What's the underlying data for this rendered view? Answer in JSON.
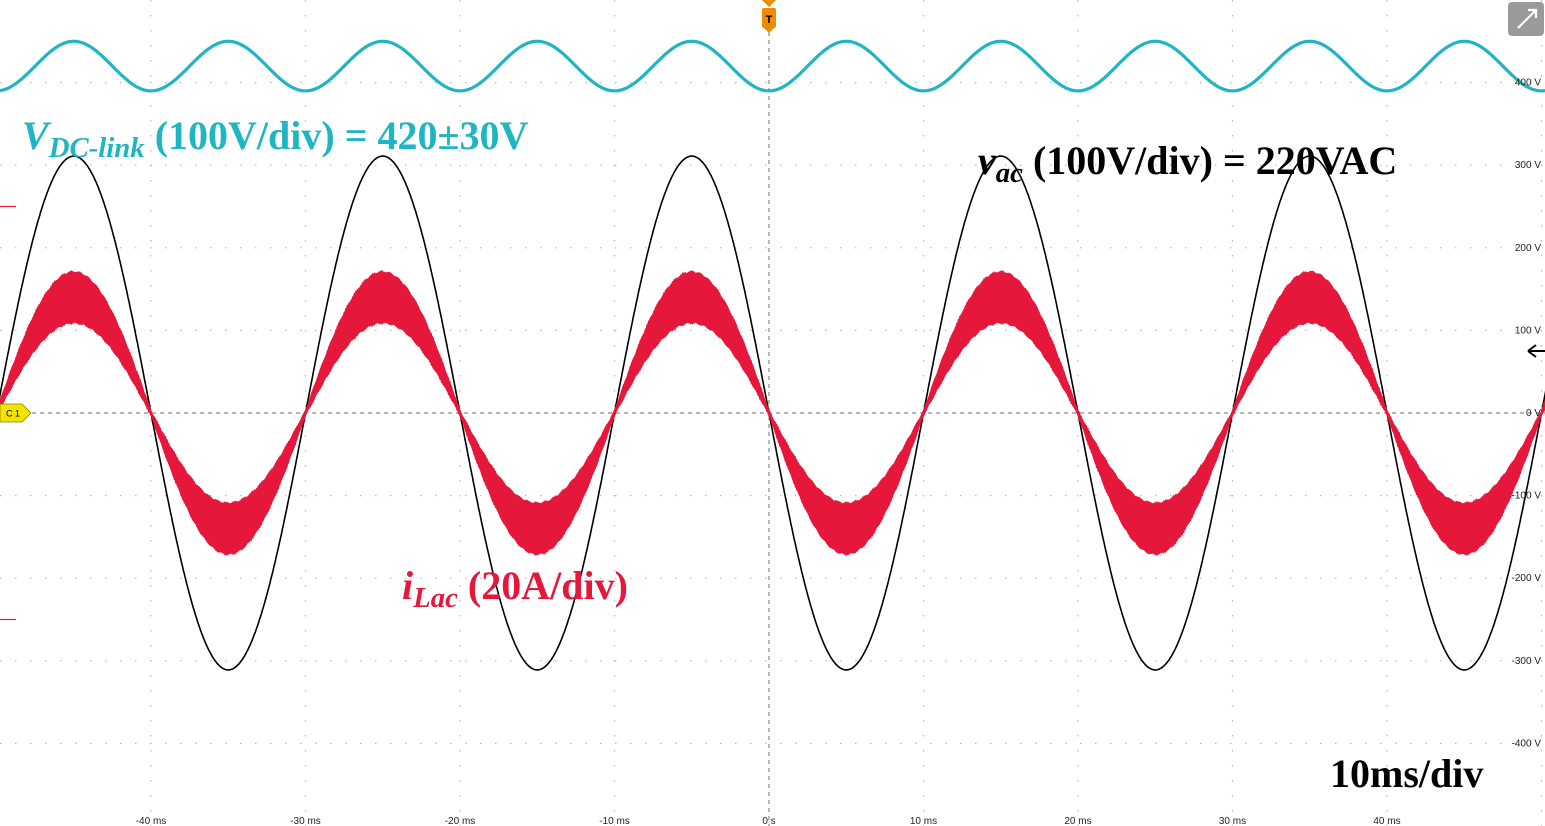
{
  "chart_data": {
    "type": "line",
    "time_axis": {
      "unit": "ms",
      "range": [
        -50,
        50
      ],
      "tick_values": [
        -40,
        -30,
        -20,
        -10,
        0,
        10,
        20,
        30,
        40
      ],
      "tick_labels": [
        "-40 ms",
        "-30 ms",
        "-20 ms",
        "-10 ms",
        "0 s",
        "10 ms",
        "20 ms",
        "30 ms",
        "40 ms"
      ]
    },
    "voltage_axis": {
      "unit": "V",
      "range": [
        -400,
        400
      ],
      "tick_values": [
        400,
        300,
        200,
        100,
        0,
        -100,
        -200,
        -300,
        -400
      ],
      "tick_labels": [
        "400 V",
        "300 V",
        "200 V",
        "100 V",
        "0 V",
        "-100 V",
        "-200 V",
        "-300 V",
        "-400 V"
      ]
    },
    "grid": true,
    "series": [
      {
        "key": "vdc",
        "color": "#1fb5c2",
        "dc_offset_V": 420,
        "ripple_amplitude_V": 30,
        "frequency_Hz": 100,
        "waveform": "sine"
      },
      {
        "key": "vac",
        "color": "#000000",
        "amplitude_V": 311,
        "frequency_Hz": 50,
        "waveform": "sine"
      },
      {
        "key": "ilac",
        "color": "#e5173a",
        "amplitude_divisions": 1.4,
        "ripple_band_divisions": 0.56,
        "frequency_Hz": 50,
        "waveform": "sine with switching ripple band"
      }
    ],
    "markers": {
      "trigger": "T",
      "channel": "C 1"
    },
    "annotations": {
      "vdc": {
        "symbol": "V",
        "subscript": "DC-link",
        "text": " (100V/div) = 420±30V"
      },
      "vac": {
        "symbol": "v",
        "subscript": "ac",
        "text": " (100V/div) = 220VAC"
      },
      "ilac": {
        "symbol": "i",
        "subscript": "Lac",
        "text": " (20A/div)"
      },
      "timebase": "10ms/div"
    }
  }
}
